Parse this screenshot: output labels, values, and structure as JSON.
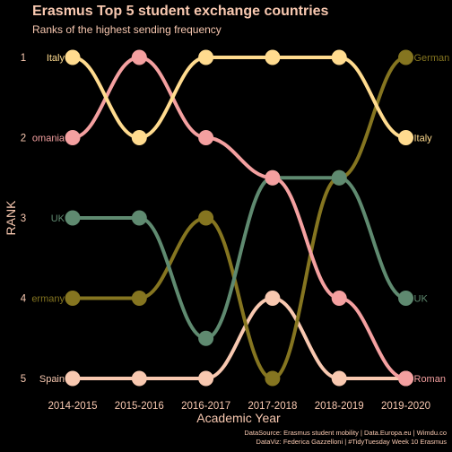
{
  "colors": {
    "background": "#000000",
    "text_main": "#F8C8B0",
    "axis_text": "#F8C8B0",
    "Italy": "#FFDB8F",
    "Romania": "#F4A0A0",
    "UK": "#5F8A70",
    "Germany": "#857520",
    "Spain": "#F8C8B0"
  },
  "chart_data": {
    "type": "bump",
    "title": "Erasmus Top 5 student exchange countries",
    "subtitle": "Ranks of the highest sending frequency",
    "xlabel": "Academic Year",
    "ylabel": "RANK",
    "categories": [
      "2014-2015",
      "2015-2016",
      "2016-2017",
      "2017-2018",
      "2018-2019",
      "2019-2020"
    ],
    "y_ticks": [
      "1",
      "2",
      "3",
      "4",
      "5"
    ],
    "ylim": [
      1,
      5
    ],
    "y_reversed": true,
    "series": [
      {
        "name": "Italy",
        "values": [
          1,
          2,
          1,
          1,
          1,
          2
        ],
        "color_key": "Italy"
      },
      {
        "name": "Romania",
        "values": [
          2,
          1,
          2,
          2.5,
          4,
          5
        ],
        "color_key": "Romania"
      },
      {
        "name": "UK",
        "values": [
          3,
          3,
          4.5,
          2.5,
          2.5,
          4
        ],
        "color_key": "UK"
      },
      {
        "name": "Germany",
        "values": [
          4,
          4,
          3,
          5,
          2.5,
          1
        ],
        "color_key": "Germany"
      },
      {
        "name": "Spain",
        "values": [
          5,
          5,
          5,
          4,
          5,
          5
        ],
        "color_key": "Spain"
      }
    ],
    "start_labels": [
      {
        "text": "Italy",
        "series": "Italy"
      },
      {
        "text": "omania",
        "series": "Romania"
      },
      {
        "text": "UK",
        "series": "UK"
      },
      {
        "text": "ermany",
        "series": "Germany"
      },
      {
        "text": "Spain",
        "series": "Spain"
      }
    ],
    "end_labels": [
      {
        "text": "German",
        "series": "Germany"
      },
      {
        "text": "Italy",
        "series": "Italy"
      },
      {
        "text": "UK",
        "series": "UK"
      },
      {
        "text": "Roman",
        "series": "Romania"
      }
    ],
    "draw_order": [
      "Spain",
      "Germany",
      "UK",
      "Romania",
      "Italy"
    ],
    "grid": false,
    "legend": "none",
    "caption_line1": "DataSource: Erasmus student mobility | Data.Europa.eu | Wimdu.co",
    "caption_line2": "DataViz: Federica Gazzelloni | #TidyTuesday Week 10 Erasmus"
  }
}
